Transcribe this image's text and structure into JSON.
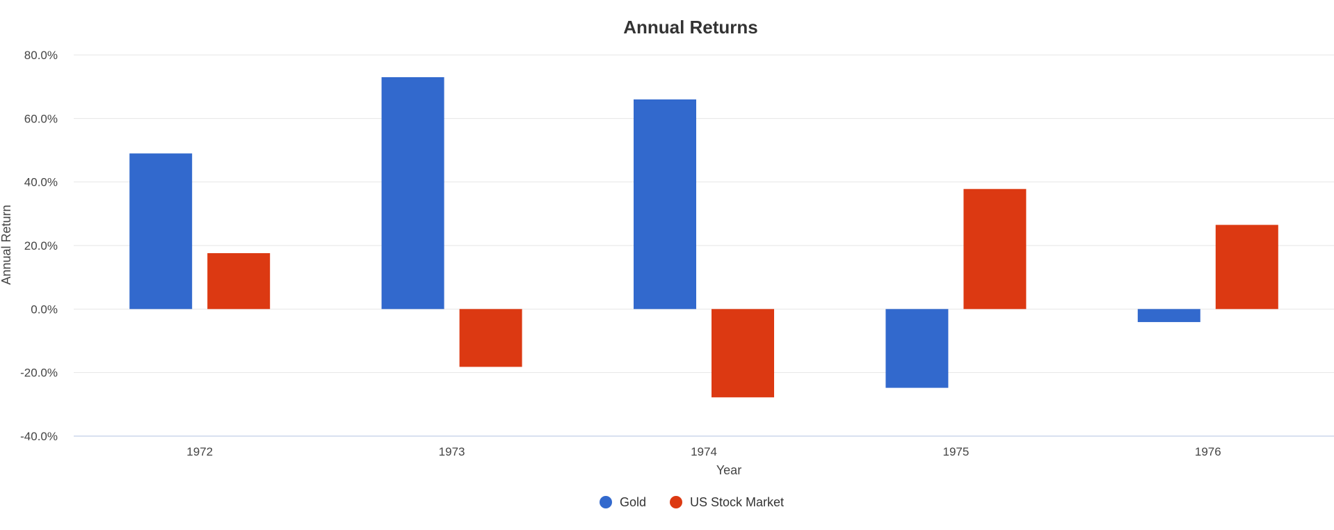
{
  "chart_data": {
    "type": "bar",
    "title": "Annual Returns",
    "xlabel": "Year",
    "ylabel": "Annual Return",
    "categories": [
      "1972",
      "1973",
      "1974",
      "1975",
      "1976"
    ],
    "series": [
      {
        "name": "Gold",
        "color": "#3269cd",
        "values": [
          49.0,
          73.0,
          66.0,
          -24.8,
          -4.1
        ]
      },
      {
        "name": "US Stock Market",
        "color": "#dc3912",
        "values": [
          17.6,
          -18.2,
          -27.8,
          37.8,
          26.5
        ]
      }
    ],
    "ylim": [
      -40,
      80
    ],
    "yticks": [
      80,
      60,
      40,
      20,
      0,
      -20,
      -40
    ],
    "ytick_labels": [
      "80.0%",
      "60.0%",
      "40.0%",
      "20.0%",
      "0.0%",
      "-20.0%",
      "-40.0%"
    ],
    "grid": true,
    "legend_position": "bottom-center"
  }
}
